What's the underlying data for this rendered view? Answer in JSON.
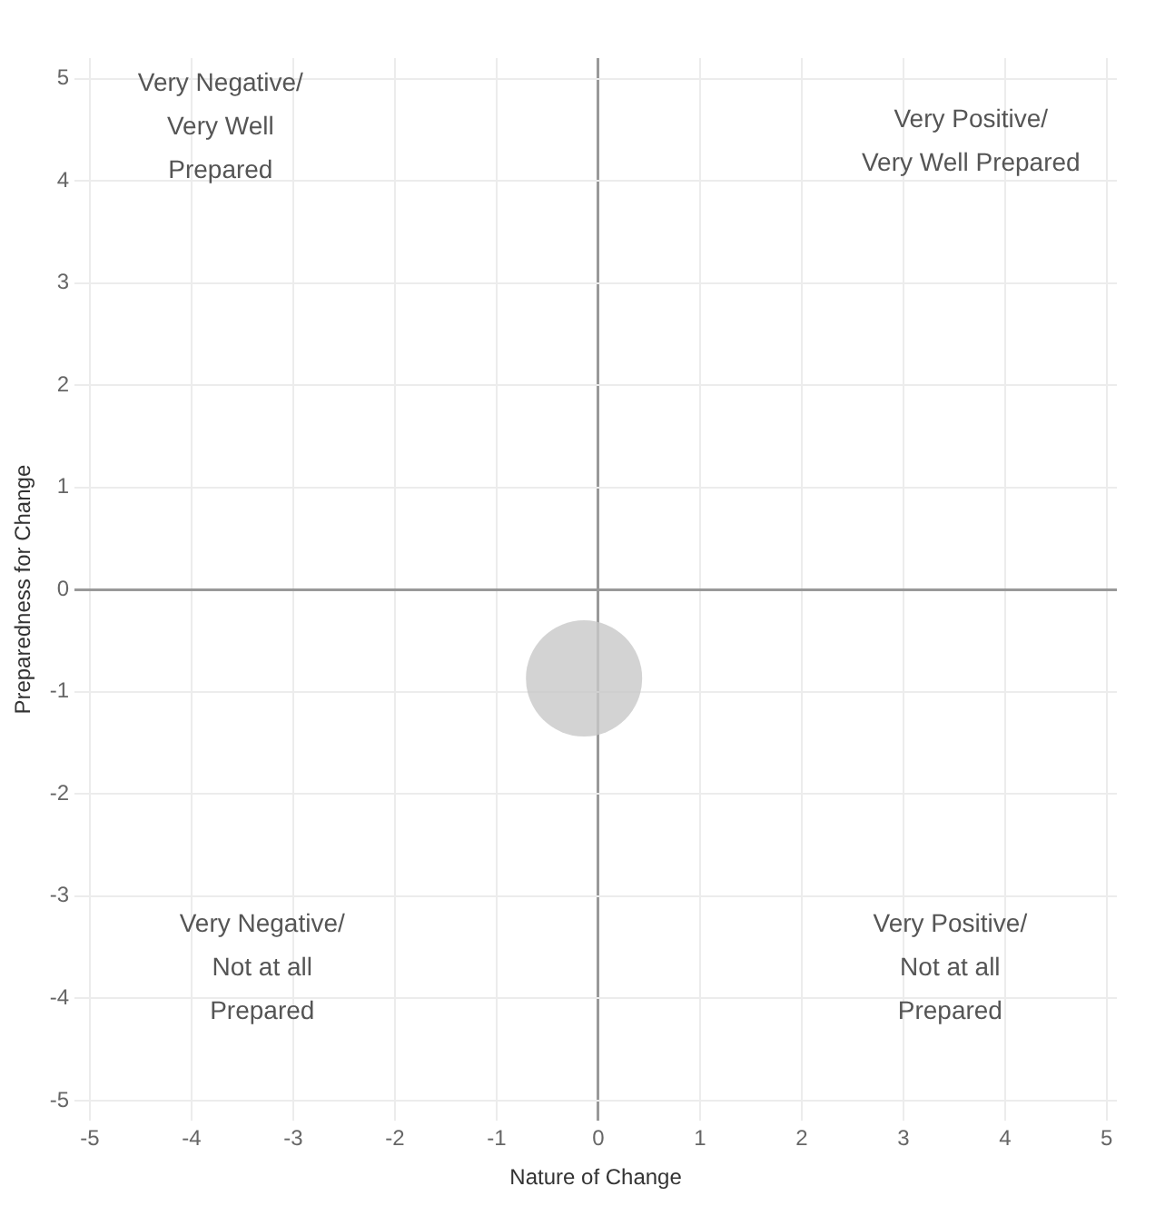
{
  "chart_data": {
    "type": "bubble",
    "xlabel": "Nature of Change",
    "ylabel": "Preparedness for Change",
    "x": [
      -0.14
    ],
    "values": [
      -0.87
    ],
    "sizes": [
      1
    ],
    "color": "#c8c8c8",
    "xlim": [
      -5.15,
      5.1
    ],
    "xticks": [
      -5,
      -4,
      -3,
      -2,
      -1,
      0,
      1,
      2,
      3,
      4,
      5
    ],
    "ylim": [
      -5.2,
      5.2
    ],
    "yticks": [
      -5,
      -4,
      -3,
      -2,
      -1,
      0,
      1,
      2,
      3,
      4,
      5
    ],
    "grid": true,
    "legend": false,
    "annotations": [
      "Very Negative/\nVery Well\nPrepared",
      "Very Positive/\nVery Well Prepared",
      "Very Negative/\nNot at all\nPrepared",
      "Very Positive/\nNot at all\nPrepared"
    ]
  }
}
